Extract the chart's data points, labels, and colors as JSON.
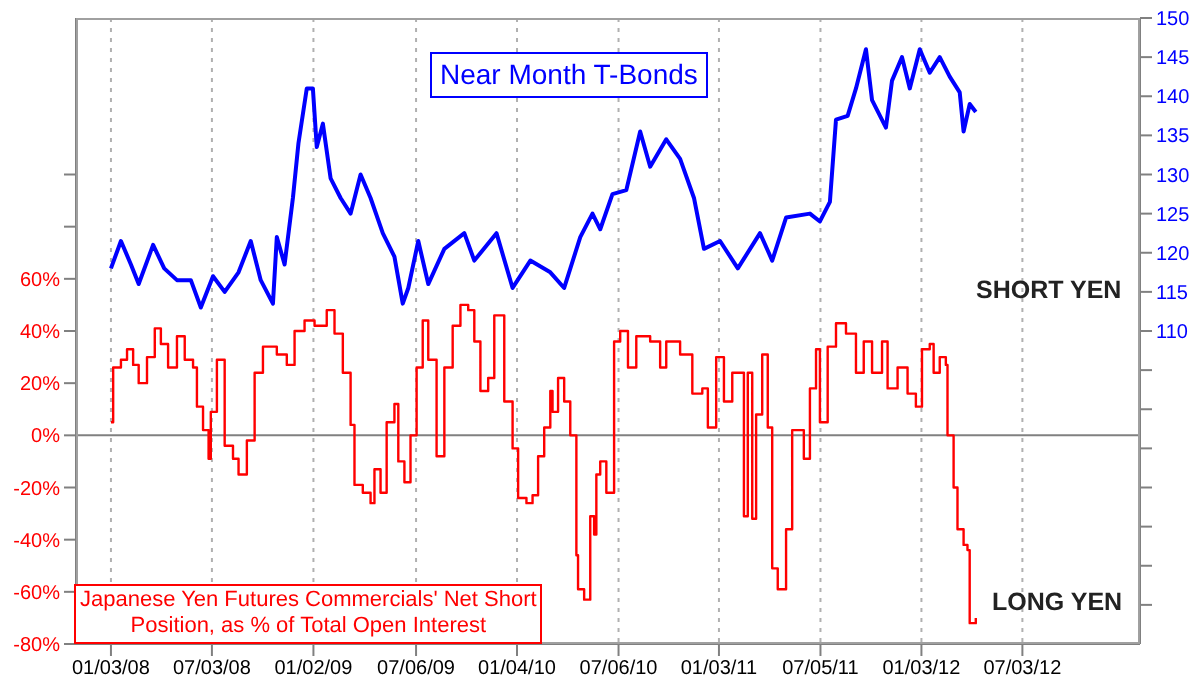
{
  "chart_data": {
    "type": "line",
    "xlim": [
      "2007-11-01",
      "2013-01-31"
    ],
    "xticks": [
      {
        "value": "2008-01-03",
        "label": "01/03/08"
      },
      {
        "value": "2008-07-03",
        "label": "07/03/08"
      },
      {
        "value": "2009-01-02",
        "label": "01/02/09"
      },
      {
        "value": "2009-07-06",
        "label": "07/06/09"
      },
      {
        "value": "2010-01-04",
        "label": "01/04/10"
      },
      {
        "value": "2010-07-06",
        "label": "07/06/10"
      },
      {
        "value": "2011-01-03",
        "label": "01/03/11"
      },
      {
        "value": "2011-07-05",
        "label": "07/05/11"
      },
      {
        "value": "2012-01-03",
        "label": "01/03/12"
      },
      {
        "value": "2012-07-03",
        "label": "07/03/12"
      }
    ],
    "ylim": [
      -80,
      160
    ],
    "yticks": [
      {
        "value": -80,
        "label": "-80%"
      },
      {
        "value": -60,
        "label": "-60%"
      },
      {
        "value": -40,
        "label": "-40%"
      },
      {
        "value": -20,
        "label": "-20%"
      },
      {
        "value": 0,
        "label": "0%"
      },
      {
        "value": 20,
        "label": "20%"
      },
      {
        "value": 40,
        "label": "40%"
      },
      {
        "value": 60,
        "label": "60%"
      },
      {
        "value": 80,
        "label": null
      },
      {
        "value": 100,
        "label": null
      }
    ],
    "y2lim": [
      70,
      150
    ],
    "y2ticks": [
      {
        "value": 75,
        "label": null
      },
      {
        "value": 80,
        "label": null
      },
      {
        "value": 85,
        "label": null
      },
      {
        "value": 90,
        "label": null
      },
      {
        "value": 95,
        "label": null
      },
      {
        "value": 100,
        "label": null
      },
      {
        "value": 105,
        "label": null
      },
      110,
      115,
      120,
      125,
      130,
      135,
      140,
      145,
      150
    ],
    "grid": "x",
    "legend": false,
    "ref_lines": [
      {
        "axis": "y",
        "value": 0,
        "label": null,
        "color": "#808080"
      }
    ],
    "annotations": [
      "SHORT YEN",
      "LONG YEN"
    ],
    "series": [
      {
        "name": "Near Month T-Bonds",
        "axis": "y2",
        "color": "#0000ff",
        "x": [
          "2008-01-03",
          "2008-01-21",
          "2008-02-08",
          "2008-02-22",
          "2008-03-19",
          "2008-04-08",
          "2008-05-01",
          "2008-05-26",
          "2008-06-13",
          "2008-07-05",
          "2008-07-26",
          "2008-08-20",
          "2008-09-11",
          "2008-09-29",
          "2008-10-21",
          "2008-10-28",
          "2008-11-11",
          "2008-11-26",
          "2008-12-06",
          "2008-12-21",
          "2009-01-01",
          "2009-01-08",
          "2009-01-19",
          "2009-02-02",
          "2009-02-20",
          "2009-03-10",
          "2009-03-28",
          "2009-04-15",
          "2009-05-07",
          "2009-05-28",
          "2009-06-12",
          "2009-06-22",
          "2009-07-10",
          "2009-07-28",
          "2009-08-26",
          "2009-10-01",
          "2009-10-19",
          "2009-11-28",
          "2009-12-27",
          "2010-01-28",
          "2010-03-05",
          "2010-03-30",
          "2010-04-28",
          "2010-05-20",
          "2010-06-03",
          "2010-06-25",
          "2010-07-20",
          "2010-08-14",
          "2010-09-01",
          "2010-09-30",
          "2010-10-25",
          "2010-11-19",
          "2010-12-07",
          "2011-01-05",
          "2011-02-06",
          "2011-03-18",
          "2011-04-09",
          "2011-05-04",
          "2011-06-16",
          "2011-07-04",
          "2011-07-22",
          "2011-08-02",
          "2011-08-23",
          "2011-09-07",
          "2011-09-25",
          "2011-10-06",
          "2011-10-31",
          "2011-11-11",
          "2011-11-29",
          "2011-12-13",
          "2011-12-31",
          "2012-01-18",
          "2012-02-05",
          "2012-02-23",
          "2012-03-12",
          "2012-03-19",
          "2012-03-30",
          "2012-04-10"
        ],
        "values": [
          118,
          121.5,
          118.5,
          116,
          121,
          118,
          116.5,
          116.5,
          113,
          117,
          115,
          117.5,
          121.5,
          116.5,
          113.5,
          122,
          118.5,
          127,
          134,
          141,
          141,
          133.5,
          136.5,
          129.5,
          127,
          125,
          130,
          127,
          122.5,
          119.5,
          113.5,
          115.5,
          121.5,
          116,
          120.5,
          122.5,
          119,
          122.5,
          115.5,
          119,
          117.5,
          115.5,
          122,
          125,
          123,
          127.5,
          128,
          135.5,
          131,
          134.5,
          132,
          127,
          120.5,
          121.5,
          118,
          122.5,
          119,
          124.5,
          125,
          124,
          126.5,
          137,
          137.5,
          141,
          146,
          139.5,
          136,
          142,
          145,
          141,
          146,
          143,
          145,
          142.5,
          140.5,
          135.5,
          139,
          138
        ]
      },
      {
        "name": "Japanese Yen Futures Commercials' Net Short Position, as % of Total Open Interest",
        "type": "step",
        "axis": "y",
        "color": "#ff0000",
        "x": [
          "2008-01-03",
          "2008-01-07",
          "2008-01-21",
          "2008-02-01",
          "2008-02-12",
          "2008-02-22",
          "2008-03-08",
          "2008-03-22",
          "2008-04-02",
          "2008-04-15",
          "2008-05-01",
          "2008-05-15",
          "2008-05-30",
          "2008-06-06",
          "2008-06-17",
          "2008-06-27",
          "2008-07-01",
          "2008-07-12",
          "2008-07-26",
          "2008-08-10",
          "2008-08-20",
          "2008-09-04",
          "2008-09-18",
          "2008-10-03",
          "2008-10-28",
          "2008-11-15",
          "2008-11-29",
          "2008-12-17",
          "2009-01-04",
          "2009-01-26",
          "2009-02-09",
          "2009-02-24",
          "2009-03-10",
          "2009-03-17",
          "2009-04-01",
          "2009-04-15",
          "2009-04-22",
          "2009-05-03",
          "2009-05-14",
          "2009-05-28",
          "2009-06-04",
          "2009-06-15",
          "2009-06-26",
          "2009-07-07",
          "2009-07-18",
          "2009-07-28",
          "2009-08-12",
          "2009-08-26",
          "2009-09-10",
          "2009-09-24",
          "2009-10-08",
          "2009-10-19",
          "2009-10-30",
          "2009-11-13",
          "2009-11-24",
          "2009-12-05",
          "2009-12-12",
          "2009-12-27",
          "2010-01-06",
          "2010-01-21",
          "2010-02-01",
          "2010-02-11",
          "2010-02-22",
          "2010-03-05",
          "2010-03-09",
          "2010-03-19",
          "2010-03-30",
          "2010-04-10",
          "2010-04-21",
          "2010-04-24",
          "2010-05-05",
          "2010-05-16",
          "2010-05-23",
          "2010-05-27",
          "2010-06-03",
          "2010-06-14",
          "2010-06-28",
          "2010-07-09",
          "2010-07-23",
          "2010-08-07",
          "2010-09-01",
          "2010-09-19",
          "2010-09-30",
          "2010-10-25",
          "2010-11-16",
          "2010-12-04",
          "2010-12-14",
          "2010-12-29",
          "2011-01-12",
          "2011-01-27",
          "2011-02-10",
          "2011-02-17",
          "2011-02-24",
          "2011-03-04",
          "2011-03-11",
          "2011-03-22",
          "2011-04-01",
          "2011-04-09",
          "2011-04-19",
          "2011-05-04",
          "2011-05-15",
          "2011-05-29",
          "2011-06-05",
          "2011-06-16",
          "2011-06-27",
          "2011-07-04",
          "2011-07-18",
          "2011-08-02",
          "2011-08-20",
          "2011-09-07",
          "2011-09-21",
          "2011-10-06",
          "2011-10-24",
          "2011-11-03",
          "2011-11-21",
          "2011-12-09",
          "2011-12-24",
          "2012-01-04",
          "2012-01-18",
          "2012-01-25",
          "2012-02-05",
          "2012-02-16",
          "2012-02-19",
          "2012-03-01",
          "2012-03-08",
          "2012-03-19",
          "2012-03-26",
          "2012-03-30",
          "2012-04-10"
        ],
        "values": [
          5,
          26,
          29,
          33,
          27,
          20,
          30,
          41,
          35,
          26,
          38,
          29,
          26,
          11,
          2,
          -9,
          9,
          29,
          -4,
          -9,
          -15,
          -2,
          24,
          34,
          31,
          27,
          40,
          44,
          42,
          48,
          39,
          24,
          4,
          -19,
          -22,
          -26,
          -13,
          -22,
          5,
          12,
          -10,
          -18,
          0,
          26,
          44,
          29,
          -8,
          26,
          42,
          50,
          48,
          36,
          17,
          22,
          46,
          46,
          13,
          -5,
          -24,
          -26,
          -23,
          -8,
          3,
          17,
          9,
          22,
          13,
          0,
          -46,
          -59,
          -63,
          -31,
          -38,
          -15,
          -10,
          -22,
          36,
          40,
          26,
          38,
          36,
          26,
          36,
          31,
          16,
          18,
          3,
          30,
          13,
          24,
          24,
          -31,
          24,
          -32,
          8,
          31,
          3,
          -51,
          -59,
          -36,
          2,
          2,
          -9,
          18,
          33,
          5,
          34,
          43,
          39,
          24,
          36,
          24,
          36,
          18,
          26,
          16,
          11,
          33,
          35,
          24,
          30,
          27,
          0,
          -20,
          -36,
          -42,
          -44,
          -72,
          -70
        ]
      }
    ]
  }
}
